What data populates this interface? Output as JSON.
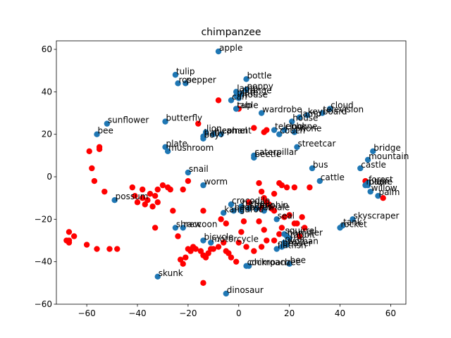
{
  "chart_data": {
    "type": "scatter",
    "title": "chimpanzee",
    "xlabel": "",
    "ylabel": "",
    "xlim": [
      -72,
      66
    ],
    "ylim": [
      -60,
      64
    ],
    "xticks": [
      -60,
      -40,
      -20,
      0,
      20,
      40,
      60
    ],
    "yticks": [
      -60,
      -40,
      -20,
      0,
      20,
      40,
      60
    ],
    "xtick_labels": [
      "−60",
      "−40",
      "−20",
      "0",
      "20",
      "40",
      "60"
    ],
    "ytick_labels": [
      "−60",
      "−40",
      "−20",
      "0",
      "20",
      "40",
      "60"
    ],
    "colors": {
      "labeled": "#1f77b4",
      "unlabeled": "#ff0000"
    },
    "labeled_points": [
      {
        "label": "apple",
        "x": -8,
        "y": 59
      },
      {
        "label": "tulip",
        "x": -25,
        "y": 48
      },
      {
        "label": "rose",
        "x": -24,
        "y": 44
      },
      {
        "label": "pepper",
        "x": -21,
        "y": 44
      },
      {
        "label": "bottle",
        "x": 3,
        "y": 46
      },
      {
        "label": "poppy",
        "x": 3,
        "y": 41
      },
      {
        "label": "orange",
        "x": 1,
        "y": 39
      },
      {
        "label": "lamp",
        "x": -1,
        "y": 40
      },
      {
        "label": "plate",
        "x": -1,
        "y": 38
      },
      {
        "label": "mouse",
        "x": 0,
        "y": 37
      },
      {
        "label": "can",
        "x": -3,
        "y": 36
      },
      {
        "label": "cup",
        "x": -1,
        "y": 32
      },
      {
        "label": "table",
        "x": -1,
        "y": 32
      },
      {
        "label": "wardrobe",
        "x": 9,
        "y": 30
      },
      {
        "label": "cloud",
        "x": 36,
        "y": 32
      },
      {
        "label": "television",
        "x": 33,
        "y": 30
      },
      {
        "label": "keyboard",
        "x": 27,
        "y": 29
      },
      {
        "label": "lamp",
        "x": 24,
        "y": 28
      },
      {
        "label": "house",
        "x": 21,
        "y": 26
      },
      {
        "label": "telephone",
        "x": 14,
        "y": 22
      },
      {
        "label": "clock",
        "x": 18,
        "y": 22
      },
      {
        "label": "phone",
        "x": 22,
        "y": 21
      },
      {
        "label": "couch",
        "x": 16,
        "y": 20
      },
      {
        "label": "butterfly",
        "x": -29,
        "y": 26
      },
      {
        "label": "sunflower",
        "x": -52,
        "y": 25
      },
      {
        "label": "bee",
        "x": -56,
        "y": 20
      },
      {
        "label": "baby",
        "x": -14,
        "y": 19
      },
      {
        "label": "camel",
        "x": -7,
        "y": 20
      },
      {
        "label": "lion",
        "x": -13,
        "y": 21
      },
      {
        "label": "elephant",
        "x": -10,
        "y": 20
      },
      {
        "label": "boy",
        "x": -14,
        "y": 18
      },
      {
        "label": "plate",
        "x": -29,
        "y": 14
      },
      {
        "label": "mushroom",
        "x": -28,
        "y": 12
      },
      {
        "label": "streetcar",
        "x": 23,
        "y": 14
      },
      {
        "label": "caterpillar",
        "x": 6,
        "y": 10
      },
      {
        "label": "beetle",
        "x": 6,
        "y": 9
      },
      {
        "label": "bridge",
        "x": 53,
        "y": 12
      },
      {
        "label": "mountain",
        "x": 51,
        "y": 8
      },
      {
        "label": "castle",
        "x": 48,
        "y": 4
      },
      {
        "label": "bus",
        "x": 29,
        "y": 4
      },
      {
        "label": "snail",
        "x": -20,
        "y": 2
      },
      {
        "label": "worm",
        "x": -14,
        "y": -4
      },
      {
        "label": "cattle",
        "x": 32,
        "y": -2
      },
      {
        "label": "forest",
        "x": 51,
        "y": -3
      },
      {
        "label": "plain",
        "x": 51,
        "y": -4
      },
      {
        "label": "maple",
        "x": 50,
        "y": -4
      },
      {
        "label": "willow",
        "x": 52,
        "y": -7
      },
      {
        "label": "palm",
        "x": 55,
        "y": -9
      },
      {
        "label": "possum",
        "x": -49,
        "y": -11
      },
      {
        "label": "crocodile",
        "x": -3,
        "y": -13
      },
      {
        "label": "turtle",
        "x": 1,
        "y": -14
      },
      {
        "label": "shark",
        "x": 4,
        "y": -15
      },
      {
        "label": "dolphin",
        "x": 7,
        "y": -15
      },
      {
        "label": "whale",
        "x": 10,
        "y": -16
      },
      {
        "label": "kangaroo",
        "x": -6,
        "y": -17
      },
      {
        "label": "bear",
        "x": -2,
        "y": -16
      },
      {
        "label": "lobster",
        "x": 1,
        "y": -16
      },
      {
        "label": "seal",
        "x": 15,
        "y": -20
      },
      {
        "label": "skyscraper",
        "x": 45,
        "y": -20
      },
      {
        "label": "rocket",
        "x": 40,
        "y": -24
      },
      {
        "label": "tank",
        "x": 41,
        "y": -23
      },
      {
        "label": "raccoon",
        "x": -22,
        "y": -24
      },
      {
        "label": "shrew",
        "x": -25,
        "y": -24
      },
      {
        "label": "squirrel",
        "x": 18,
        "y": -27
      },
      {
        "label": "hamster",
        "x": 19,
        "y": -28
      },
      {
        "label": "rabbit",
        "x": 20,
        "y": -29
      },
      {
        "label": "bicycle",
        "x": -14,
        "y": -30
      },
      {
        "label": "motorcycle",
        "x": -11,
        "y": -31
      },
      {
        "label": "otter",
        "x": 18,
        "y": -31
      },
      {
        "label": "beaver",
        "x": 17,
        "y": -33
      },
      {
        "label": "flatfish",
        "x": 15,
        "y": -34
      },
      {
        "label": "woman",
        "x": 19,
        "y": -32
      },
      {
        "label": "skunk",
        "x": -32,
        "y": -47
      },
      {
        "label": "chimpanzee",
        "x": 4,
        "y": -42
      },
      {
        "label": "cockroach",
        "x": 3,
        "y": -42
      },
      {
        "label": "bee",
        "x": 20,
        "y": -41
      },
      {
        "label": "dinosaur",
        "x": -5,
        "y": -55
      }
    ],
    "unlabeled_points": [
      [
        -59,
        12
      ],
      [
        -58,
        4
      ],
      [
        -57,
        -2
      ],
      [
        -55,
        13
      ],
      [
        -55,
        14
      ],
      [
        -53,
        -7
      ],
      [
        -51,
        -34
      ],
      [
        -48,
        -34
      ],
      [
        -56,
        -34
      ],
      [
        -60,
        -32
      ],
      [
        -65,
        -28
      ],
      [
        -67,
        -26
      ],
      [
        -67,
        -31
      ],
      [
        -68,
        -30
      ],
      [
        -67,
        -30
      ],
      [
        -42,
        -5
      ],
      [
        -41,
        -9
      ],
      [
        -40,
        -12
      ],
      [
        -38,
        -6
      ],
      [
        -37,
        -13
      ],
      [
        -36,
        -11
      ],
      [
        -38,
        -10
      ],
      [
        -35,
        -8
      ],
      [
        -33,
        -9
      ],
      [
        -32,
        -12
      ],
      [
        -32,
        -6
      ],
      [
        -34,
        -14
      ],
      [
        -33,
        -24
      ],
      [
        -30,
        -4
      ],
      [
        -28,
        -5
      ],
      [
        -27,
        -6
      ],
      [
        -26,
        -16
      ],
      [
        -22,
        -6
      ],
      [
        -20,
        -2
      ],
      [
        -24,
        -28
      ],
      [
        -23,
        -39
      ],
      [
        -22,
        -41
      ],
      [
        -21,
        -38
      ],
      [
        -20,
        -34
      ],
      [
        -19,
        -35
      ],
      [
        -18,
        -33
      ],
      [
        -17,
        -34
      ],
      [
        -15,
        -35
      ],
      [
        -14,
        -37
      ],
      [
        -13,
        -38
      ],
      [
        -12,
        -36
      ],
      [
        -11,
        -34
      ],
      [
        -10,
        -34
      ],
      [
        -8,
        -33
      ],
      [
        -6,
        -31
      ],
      [
        -5,
        -35
      ],
      [
        -4,
        -36
      ],
      [
        -3,
        -38
      ],
      [
        -1,
        -40
      ],
      [
        -14,
        -16
      ],
      [
        -14,
        -50
      ],
      [
        -16,
        25
      ],
      [
        -8,
        36
      ],
      [
        0,
        32
      ],
      [
        6,
        23
      ],
      [
        10,
        21
      ],
      [
        11,
        22
      ],
      [
        8,
        -3
      ],
      [
        9,
        -7
      ],
      [
        10,
        -10
      ],
      [
        12,
        -13
      ],
      [
        13,
        -15
      ],
      [
        14,
        -16
      ],
      [
        11,
        -12
      ],
      [
        9,
        -15
      ],
      [
        8,
        -21
      ],
      [
        10,
        -25
      ],
      [
        11,
        -30
      ],
      [
        14,
        -30
      ],
      [
        16,
        -27
      ],
      [
        17,
        -24
      ],
      [
        18,
        -19
      ],
      [
        20,
        -18
      ],
      [
        22,
        -22
      ],
      [
        23,
        -22
      ],
      [
        24,
        -28
      ],
      [
        25,
        -19
      ],
      [
        26,
        -24
      ],
      [
        22,
        -5
      ],
      [
        16,
        -3
      ],
      [
        14,
        -8
      ],
      [
        17,
        -4
      ],
      [
        19,
        -5
      ],
      [
        28,
        -5
      ],
      [
        9,
        -33
      ],
      [
        3,
        -33
      ],
      [
        6,
        -35
      ],
      [
        2,
        -21
      ],
      [
        0,
        -31
      ],
      [
        1,
        -26
      ],
      [
        57,
        -10
      ],
      [
        50,
        -2
      ],
      [
        -7,
        -20
      ],
      [
        -5,
        -22
      ],
      [
        4,
        -12
      ]
    ]
  }
}
